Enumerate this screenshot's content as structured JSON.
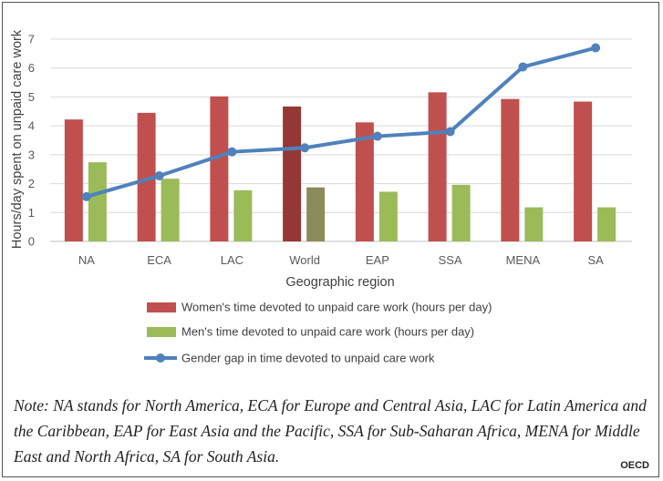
{
  "chart_data": {
    "type": "bar",
    "categories": [
      "NA",
      "ECA",
      "LAC",
      "World",
      "EAP",
      "SSA",
      "MENA",
      "SA"
    ],
    "xlabel": "Geographic region",
    "ylabel": "Hours/day spent on unpaid care work",
    "ylim": [
      0,
      7
    ],
    "yticks": [
      0,
      1,
      2,
      3,
      4,
      5,
      6,
      7
    ],
    "grid": true,
    "legend_position": "bottom",
    "highlight_category": "World",
    "series": [
      {
        "name": "Women's time devoted to unpaid care work (hours per day)",
        "kind": "bar",
        "color": "#C0504D",
        "highlight_color": "#953735",
        "values": [
          4.22,
          4.45,
          5.02,
          4.67,
          4.12,
          5.16,
          4.93,
          4.84
        ]
      },
      {
        "name": "Men's time devoted to unpaid care work (hours per day)",
        "kind": "bar",
        "color": "#9BBB59",
        "highlight_color": "#8C8C5A",
        "values": [
          2.74,
          2.17,
          1.77,
          1.87,
          1.72,
          1.96,
          1.18,
          1.18
        ]
      },
      {
        "name": "Gender gap in time devoted to unpaid care work",
        "kind": "line",
        "color": "#4F81BD",
        "values": [
          1.55,
          2.27,
          3.1,
          3.24,
          3.64,
          3.8,
          6.04,
          6.7
        ]
      }
    ]
  },
  "note": "Note: NA stands for North America, ECA for Europe and Central Asia, LAC for Latin America and the Caribbean, EAP for East Asia and the Pacific, SSA for Sub-Saharan Africa, MENA for Middle East and North Africa, SA for South Asia.",
  "source": "OECD"
}
